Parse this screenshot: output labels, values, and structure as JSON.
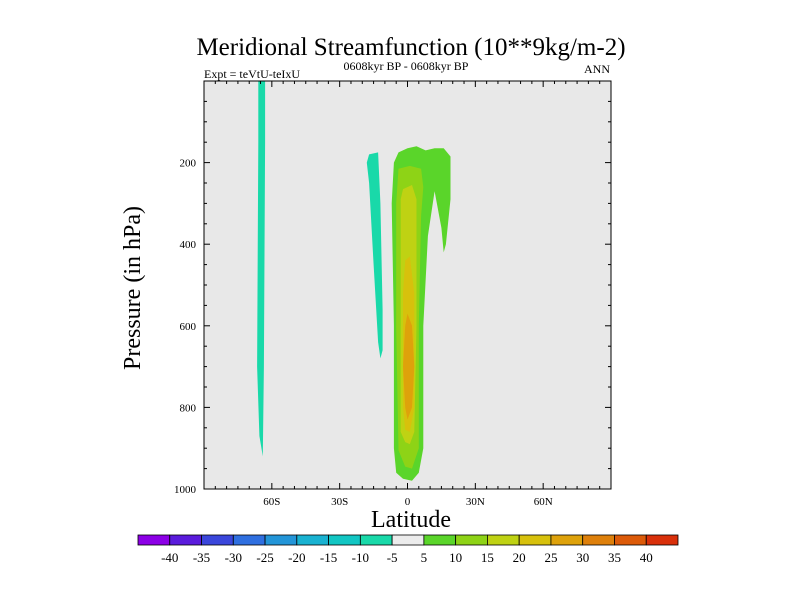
{
  "chart_data": {
    "type": "heatmap",
    "title": "Meridional Streamfunction (10**9kg/m-2)",
    "left_subtitle": "Expt = teVtU-teIxU",
    "center_subtitle": "0608kyr BP - 0608kyr BP",
    "right_subtitle": "ANN",
    "xlabel": "Latitude",
    "ylabel": "Pressure (in hPa)",
    "xlim": [
      -90,
      90
    ],
    "ylim": [
      1000,
      0
    ],
    "x_ticks": [
      {
        "value": -60,
        "label": "60S"
      },
      {
        "value": -30,
        "label": "30S"
      },
      {
        "value": 0,
        "label": "0"
      },
      {
        "value": 30,
        "label": "30N"
      },
      {
        "value": 60,
        "label": "60N"
      }
    ],
    "y_ticks": [
      {
        "value": 200,
        "label": "200"
      },
      {
        "value": 400,
        "label": "400"
      },
      {
        "value": 600,
        "label": "600"
      },
      {
        "value": 800,
        "label": "800"
      },
      {
        "value": 1000,
        "label": "1000"
      }
    ],
    "background_color": "#e8e8e8",
    "colorbar": {
      "labels": [
        "-40",
        "-35",
        "-30",
        "-25",
        "-20",
        "-15",
        "-10",
        "-5",
        "5",
        "10",
        "15",
        "20",
        "25",
        "30",
        "35",
        "40"
      ],
      "colors": [
        "#8c00e6",
        "#5a1bdc",
        "#3a46db",
        "#2f6fe0",
        "#2395d8",
        "#19b2d1",
        "#12c6c3",
        "#19d9a9",
        "#ececec",
        "#5ad52a",
        "#8ed316",
        "#bfd213",
        "#d7c10c",
        "#dea20b",
        "#de800b",
        "#dc5a09",
        "#d9300a"
      ]
    },
    "regions": [
      {
        "level": -5,
        "color": "#19d9a9",
        "points": [
          [
            -66,
            0
          ],
          [
            -63,
            0
          ],
          [
            -63,
            150
          ],
          [
            -63.5,
            700
          ],
          [
            -64,
            920
          ],
          [
            -65.5,
            870
          ],
          [
            -66.5,
            700
          ],
          [
            -66,
            150
          ]
        ]
      },
      {
        "level": -5,
        "color": "#19d9a9",
        "points": [
          [
            -17,
            180
          ],
          [
            -13,
            175
          ],
          [
            -12,
            300
          ],
          [
            -11,
            560
          ],
          [
            -11,
            660
          ],
          [
            -12,
            680
          ],
          [
            -13,
            640
          ],
          [
            -15,
            450
          ],
          [
            -17,
            250
          ],
          [
            -18,
            200
          ]
        ]
      },
      {
        "level": 5,
        "color": "#5ad52a",
        "points": [
          [
            -4,
            175
          ],
          [
            0,
            165
          ],
          [
            4,
            160
          ],
          [
            8,
            170
          ],
          [
            12,
            165
          ],
          [
            16,
            165
          ],
          [
            19,
            185
          ],
          [
            19,
            290
          ],
          [
            17,
            400
          ],
          [
            16,
            420
          ],
          [
            15,
            360
          ],
          [
            12,
            270
          ],
          [
            9,
            380
          ],
          [
            7,
            600
          ],
          [
            7,
            900
          ],
          [
            5,
            960
          ],
          [
            2,
            980
          ],
          [
            -2,
            975
          ],
          [
            -5,
            960
          ],
          [
            -6,
            900
          ],
          [
            -6,
            600
          ],
          [
            -7,
            300
          ],
          [
            -6,
            200
          ]
        ]
      },
      {
        "level": 10,
        "color": "#8ed316",
        "points": [
          [
            -4,
            215
          ],
          [
            1,
            208
          ],
          [
            6,
            215
          ],
          [
            7,
            260
          ],
          [
            6,
            330
          ],
          [
            5,
            600
          ],
          [
            5,
            900
          ],
          [
            2,
            950
          ],
          [
            -1,
            945
          ],
          [
            -4,
            905
          ],
          [
            -5,
            600
          ],
          [
            -5,
            300
          ]
        ]
      },
      {
        "level": 15,
        "color": "#bfd213",
        "points": [
          [
            -2,
            265
          ],
          [
            2,
            255
          ],
          [
            4,
            290
          ],
          [
            4,
            600
          ],
          [
            3,
            860
          ],
          [
            1,
            890
          ],
          [
            -1,
            885
          ],
          [
            -3,
            860
          ],
          [
            -3,
            600
          ],
          [
            -3,
            290
          ]
        ]
      },
      {
        "level": 20,
        "color": "#d7c10c",
        "points": [
          [
            -1,
            440
          ],
          [
            1,
            430
          ],
          [
            3,
            520
          ],
          [
            3,
            800
          ],
          [
            1,
            860
          ],
          [
            -1,
            855
          ],
          [
            -2,
            800
          ],
          [
            -2,
            520
          ]
        ]
      },
      {
        "level": 25,
        "color": "#dea20b",
        "points": [
          [
            0,
            570
          ],
          [
            2,
            600
          ],
          [
            3,
            700
          ],
          [
            2,
            800
          ],
          [
            0,
            830
          ],
          [
            -1,
            800
          ],
          [
            -2,
            700
          ],
          [
            -1,
            600
          ]
        ]
      }
    ]
  }
}
